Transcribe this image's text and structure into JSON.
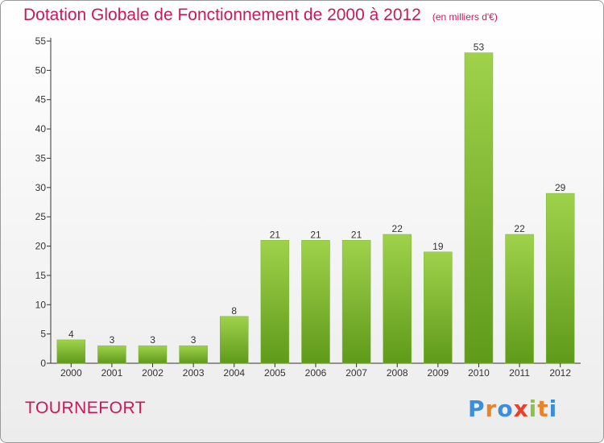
{
  "chart_data": {
    "type": "bar",
    "title": "Dotation Globale de Fonctionnement de 2000 à 2012",
    "subtitle": "(en milliers d'€)",
    "categories": [
      "2000",
      "2001",
      "2002",
      "2003",
      "2004",
      "2005",
      "2006",
      "2007",
      "2008",
      "2009",
      "2010",
      "2011",
      "2012"
    ],
    "values": [
      4,
      3,
      3,
      3,
      8,
      21,
      21,
      21,
      22,
      19,
      53,
      22,
      29
    ],
    "xlabel": "",
    "ylabel": "",
    "ylim": [
      0,
      55
    ],
    "yticks": [
      0,
      5,
      10,
      15,
      20,
      25,
      30,
      35,
      40,
      45,
      50,
      55
    ],
    "grid": false,
    "bar_color_top": "#9fd24b",
    "bar_color_bottom": "#5f9a1a"
  },
  "commune": "TOURNEFORT",
  "logo": {
    "letters": [
      "P",
      "r",
      "o",
      "x",
      "i",
      "t",
      "i"
    ],
    "colors": [
      "#3a8fd8",
      "#e8842a",
      "#3a8fd8",
      "#e8402a",
      "#8bc34a",
      "#e8842a",
      "#3a8fd8"
    ]
  }
}
